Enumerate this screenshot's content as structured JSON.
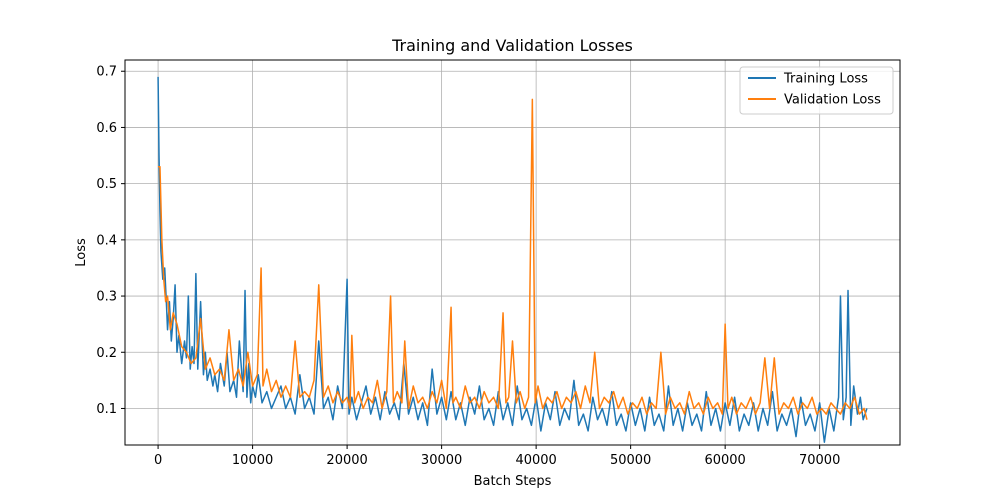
{
  "chart_data": {
    "type": "line",
    "title": "Training and Validation Losses",
    "xlabel": "Batch Steps",
    "ylabel": "Loss",
    "xlim": [
      -3500,
      78500
    ],
    "ylim": [
      0.035,
      0.72
    ],
    "x_ticks": [
      0,
      10000,
      20000,
      30000,
      40000,
      50000,
      60000,
      70000
    ],
    "x_tick_labels": [
      "0",
      "10000",
      "20000",
      "30000",
      "40000",
      "50000",
      "60000",
      "70000"
    ],
    "y_ticks": [
      0.1,
      0.2,
      0.3,
      0.4,
      0.5,
      0.6,
      0.7
    ],
    "y_tick_labels": [
      "0.1",
      "0.2",
      "0.3",
      "0.4",
      "0.5",
      "0.6",
      "0.7"
    ],
    "grid": true,
    "legend_position": "top-right",
    "series": [
      {
        "name": "Training Loss",
        "color": "#1f77b4",
        "x": [
          0,
          100,
          200,
          300,
          500,
          700,
          900,
          1000,
          1200,
          1400,
          1600,
          1800,
          2000,
          2200,
          2500,
          2800,
          3000,
          3200,
          3400,
          3600,
          3800,
          4000,
          4200,
          4500,
          4800,
          5000,
          5200,
          5500,
          5800,
          6000,
          6300,
          6600,
          7000,
          7300,
          7600,
          8000,
          8300,
          8600,
          9000,
          9200,
          9400,
          9600,
          9800,
          10000,
          10300,
          10600,
          11000,
          11500,
          12000,
          12500,
          13000,
          13500,
          14000,
          14500,
          15000,
          15500,
          16000,
          16500,
          17000,
          17500,
          18000,
          18500,
          19000,
          19500,
          20000,
          20200,
          20500,
          21000,
          21500,
          22000,
          22500,
          23000,
          23500,
          24000,
          24500,
          25000,
          25500,
          26000,
          26500,
          27000,
          27500,
          28000,
          28500,
          29000,
          29500,
          30000,
          30500,
          31000,
          31500,
          32000,
          32500,
          33000,
          33500,
          34000,
          34500,
          35000,
          35500,
          36000,
          36500,
          37000,
          37500,
          38000,
          38500,
          39000,
          39500,
          40000,
          40500,
          41000,
          41500,
          42000,
          42500,
          43000,
          43500,
          44000,
          44500,
          45000,
          45500,
          46000,
          46500,
          47000,
          47500,
          48000,
          48500,
          49000,
          49500,
          50000,
          50500,
          51000,
          51500,
          52000,
          52500,
          53000,
          53500,
          54000,
          54500,
          55000,
          55500,
          56000,
          56500,
          57000,
          57500,
          58000,
          58500,
          59000,
          59500,
          60000,
          60500,
          61000,
          61500,
          62000,
          62500,
          63000,
          63500,
          64000,
          64500,
          65000,
          65500,
          66000,
          66500,
          67000,
          67500,
          68000,
          68500,
          69000,
          69500,
          70000,
          70500,
          71000,
          71500,
          72000,
          72200,
          72500,
          72800,
          73000,
          73300,
          73600,
          74000,
          74300,
          74600,
          75000
        ],
        "y": [
          0.69,
          0.55,
          0.45,
          0.38,
          0.33,
          0.35,
          0.28,
          0.24,
          0.29,
          0.22,
          0.26,
          0.32,
          0.2,
          0.23,
          0.18,
          0.22,
          0.19,
          0.3,
          0.17,
          0.21,
          0.18,
          0.34,
          0.17,
          0.29,
          0.16,
          0.2,
          0.15,
          0.17,
          0.14,
          0.16,
          0.13,
          0.18,
          0.14,
          0.2,
          0.13,
          0.15,
          0.12,
          0.22,
          0.13,
          0.31,
          0.12,
          0.18,
          0.11,
          0.14,
          0.12,
          0.16,
          0.11,
          0.13,
          0.1,
          0.12,
          0.14,
          0.1,
          0.12,
          0.09,
          0.16,
          0.1,
          0.12,
          0.09,
          0.22,
          0.1,
          0.12,
          0.08,
          0.14,
          0.1,
          0.33,
          0.09,
          0.12,
          0.08,
          0.11,
          0.14,
          0.09,
          0.12,
          0.08,
          0.13,
          0.09,
          0.11,
          0.08,
          0.18,
          0.09,
          0.12,
          0.08,
          0.11,
          0.07,
          0.17,
          0.09,
          0.12,
          0.08,
          0.13,
          0.08,
          0.11,
          0.07,
          0.12,
          0.09,
          0.14,
          0.08,
          0.1,
          0.07,
          0.13,
          0.08,
          0.11,
          0.07,
          0.14,
          0.08,
          0.1,
          0.07,
          0.12,
          0.06,
          0.11,
          0.08,
          0.13,
          0.07,
          0.1,
          0.08,
          0.15,
          0.07,
          0.09,
          0.06,
          0.12,
          0.08,
          0.1,
          0.07,
          0.13,
          0.07,
          0.09,
          0.06,
          0.11,
          0.07,
          0.1,
          0.06,
          0.12,
          0.07,
          0.09,
          0.06,
          0.14,
          0.07,
          0.1,
          0.06,
          0.11,
          0.07,
          0.09,
          0.06,
          0.13,
          0.07,
          0.1,
          0.06,
          0.11,
          0.07,
          0.12,
          0.06,
          0.09,
          0.07,
          0.11,
          0.06,
          0.1,
          0.07,
          0.13,
          0.06,
          0.09,
          0.07,
          0.1,
          0.05,
          0.12,
          0.07,
          0.09,
          0.06,
          0.11,
          0.04,
          0.1,
          0.06,
          0.12,
          0.3,
          0.08,
          0.12,
          0.31,
          0.07,
          0.14,
          0.09,
          0.12,
          0.08,
          0.1
        ]
      },
      {
        "name": "Validation Loss",
        "color": "#ff7f0e",
        "x": [
          0,
          200,
          400,
          600,
          800,
          1000,
          1300,
          1600,
          2000,
          2500,
          3000,
          3500,
          4000,
          4500,
          5000,
          5500,
          6000,
          6500,
          7000,
          7500,
          8000,
          8500,
          9000,
          9500,
          10000,
          10500,
          10900,
          11100,
          11500,
          12000,
          12500,
          13000,
          13500,
          14000,
          14500,
          15000,
          15500,
          16000,
          16500,
          17000,
          17500,
          18000,
          18500,
          19000,
          19500,
          20000,
          20300,
          20500,
          20800,
          21200,
          21700,
          22200,
          22700,
          23200,
          23700,
          24200,
          24600,
          24900,
          25300,
          25800,
          26100,
          26500,
          27000,
          27500,
          28000,
          28500,
          29000,
          29500,
          30000,
          30500,
          31000,
          31200,
          31500,
          32000,
          32500,
          33000,
          33500,
          34000,
          34500,
          35000,
          35500,
          36000,
          36500,
          36800,
          37100,
          37500,
          37900,
          38300,
          38800,
          39200,
          39600,
          39900,
          40200,
          40700,
          41200,
          41700,
          42200,
          42700,
          43200,
          43700,
          44200,
          44700,
          45200,
          45700,
          46200,
          46700,
          47200,
          47700,
          48200,
          48700,
          49200,
          49700,
          50200,
          50700,
          51200,
          51700,
          52200,
          52700,
          53200,
          53700,
          54200,
          54700,
          55200,
          55700,
          56200,
          56700,
          57200,
          57700,
          58200,
          58700,
          59200,
          59700,
          60000,
          60300,
          60700,
          61200,
          61700,
          62200,
          62700,
          63200,
          63700,
          64200,
          64700,
          65200,
          65700,
          66200,
          66700,
          67200,
          67700,
          68200,
          68700,
          69200,
          69700,
          70200,
          70700,
          71200,
          71700,
          72200,
          72700,
          73200,
          73700,
          74200,
          74700,
          75000
        ],
        "y": [
          0.53,
          0.53,
          0.4,
          0.33,
          0.29,
          0.3,
          0.24,
          0.27,
          0.25,
          0.21,
          0.2,
          0.18,
          0.19,
          0.26,
          0.17,
          0.19,
          0.16,
          0.17,
          0.15,
          0.24,
          0.15,
          0.17,
          0.14,
          0.2,
          0.14,
          0.16,
          0.35,
          0.14,
          0.17,
          0.13,
          0.15,
          0.12,
          0.14,
          0.12,
          0.22,
          0.12,
          0.13,
          0.12,
          0.15,
          0.32,
          0.12,
          0.14,
          0.11,
          0.13,
          0.11,
          0.12,
          0.1,
          0.23,
          0.11,
          0.13,
          0.1,
          0.12,
          0.11,
          0.15,
          0.1,
          0.13,
          0.3,
          0.11,
          0.13,
          0.11,
          0.22,
          0.1,
          0.14,
          0.11,
          0.12,
          0.1,
          0.13,
          0.11,
          0.15,
          0.1,
          0.28,
          0.11,
          0.12,
          0.1,
          0.14,
          0.11,
          0.12,
          0.1,
          0.13,
          0.11,
          0.12,
          0.1,
          0.27,
          0.11,
          0.12,
          0.22,
          0.11,
          0.13,
          0.1,
          0.12,
          0.65,
          0.11,
          0.14,
          0.1,
          0.12,
          0.11,
          0.13,
          0.1,
          0.12,
          0.11,
          0.13,
          0.1,
          0.14,
          0.11,
          0.2,
          0.1,
          0.12,
          0.11,
          0.13,
          0.1,
          0.12,
          0.09,
          0.11,
          0.1,
          0.12,
          0.09,
          0.11,
          0.1,
          0.2,
          0.09,
          0.12,
          0.1,
          0.11,
          0.09,
          0.13,
          0.1,
          0.11,
          0.09,
          0.12,
          0.1,
          0.11,
          0.09,
          0.25,
          0.1,
          0.12,
          0.09,
          0.11,
          0.1,
          0.12,
          0.09,
          0.11,
          0.19,
          0.1,
          0.19,
          0.09,
          0.11,
          0.1,
          0.12,
          0.09,
          0.11,
          0.1,
          0.12,
          0.09,
          0.1,
          0.09,
          0.11,
          0.1,
          0.09,
          0.11,
          0.1,
          0.12,
          0.09,
          0.1,
          0.08
        ]
      }
    ]
  }
}
